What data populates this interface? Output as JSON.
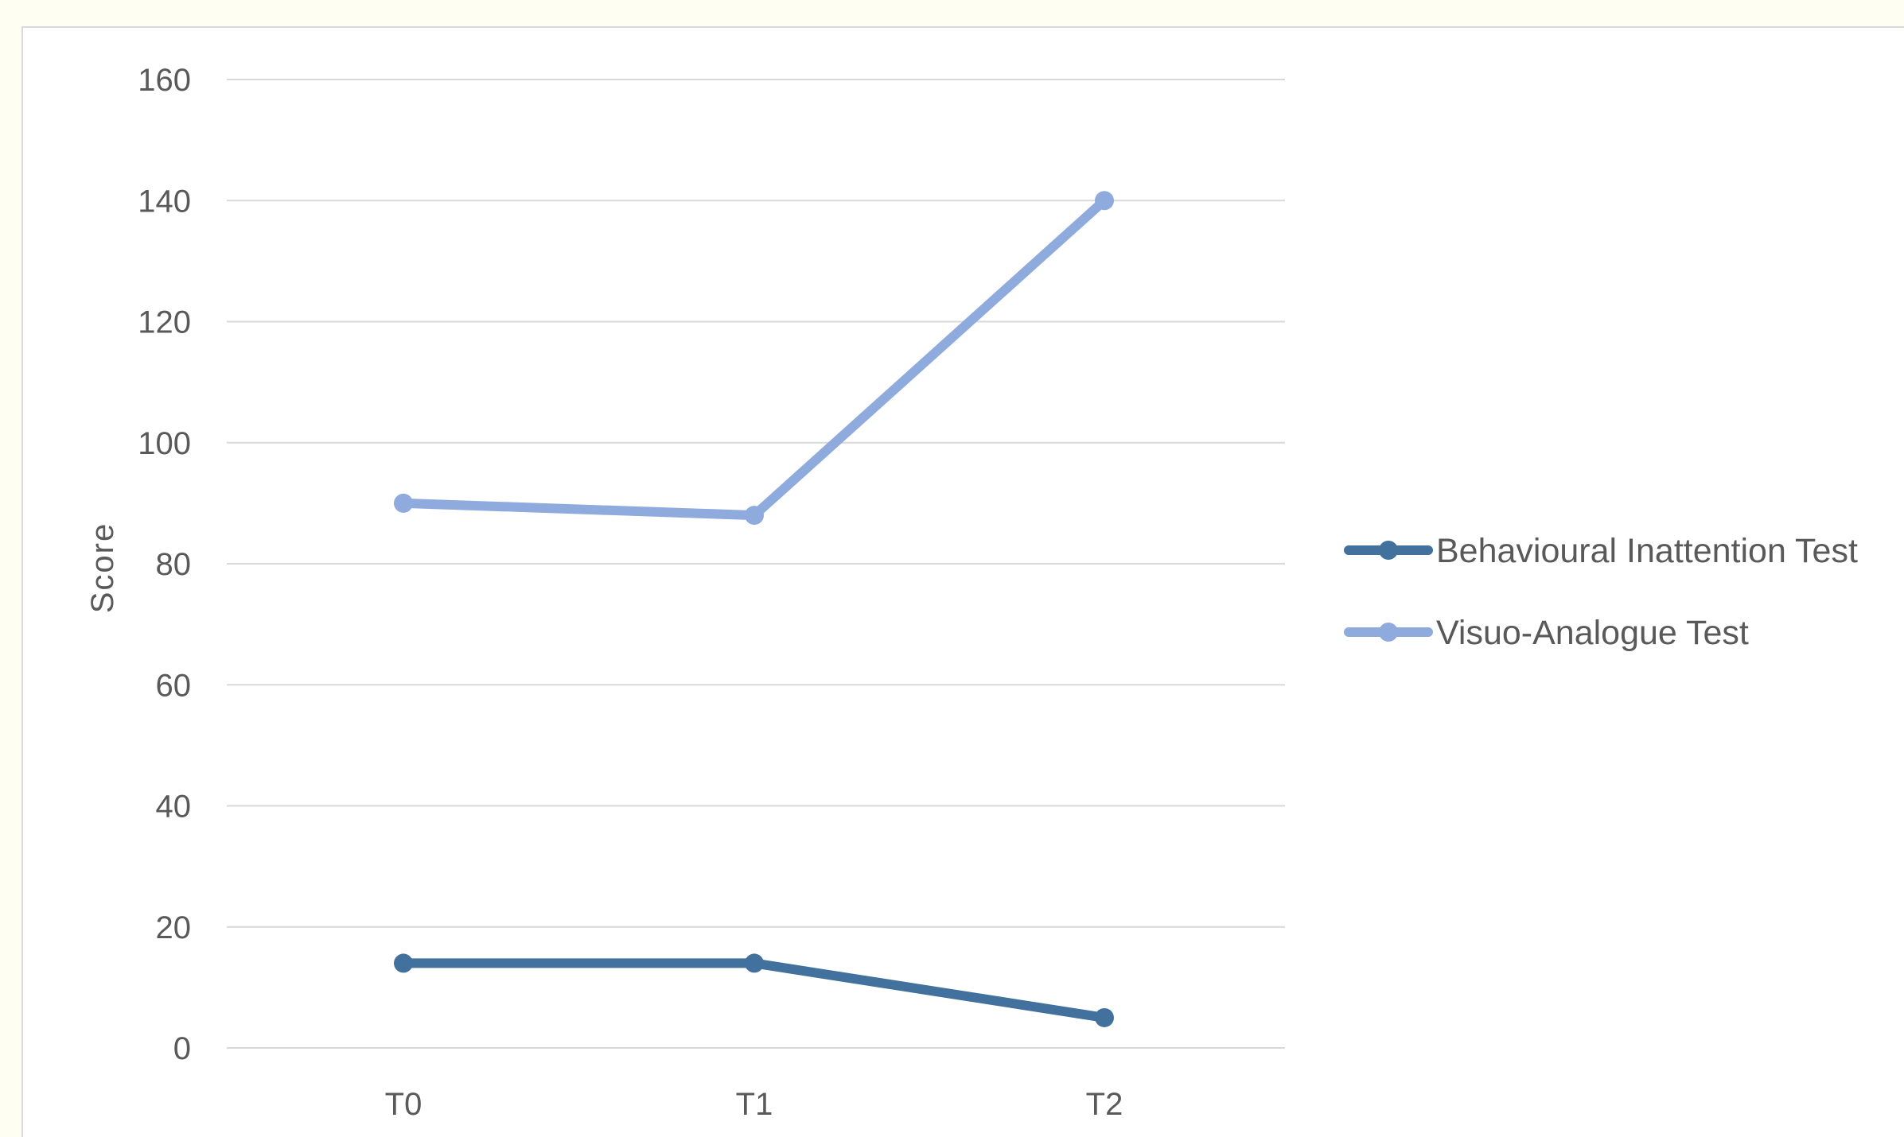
{
  "chart_data": {
    "type": "line",
    "title": "",
    "xlabel": "",
    "ylabel": "Score",
    "categories": [
      "T0",
      "T1",
      "T2"
    ],
    "ylim": [
      0,
      160
    ],
    "yticks": [
      0,
      20,
      40,
      60,
      80,
      100,
      120,
      140,
      160
    ],
    "grid": true,
    "legend_position": "right",
    "series": [
      {
        "name": "Behavioural Inattention Test",
        "values": [
          14,
          14,
          5
        ],
        "color": "#41719c"
      },
      {
        "name": "Visuo-Analogue Test",
        "values": [
          90,
          88,
          140
        ],
        "color": "#8faadc"
      }
    ]
  }
}
